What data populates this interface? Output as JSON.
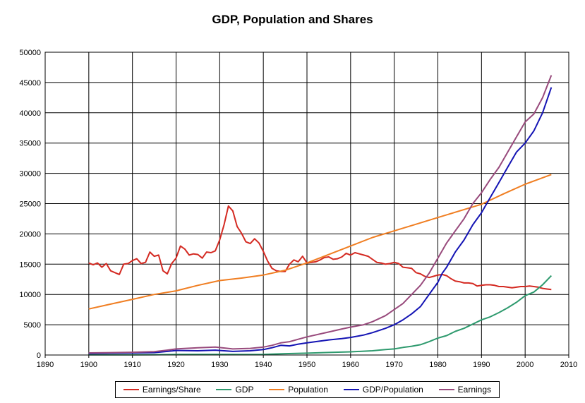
{
  "title": "GDP, Population and Shares",
  "chart_data": {
    "type": "line",
    "title": "GDP, Population and Shares",
    "xlabel": "",
    "ylabel": "",
    "xlim": [
      1890,
      2010
    ],
    "ylim": [
      0,
      50000
    ],
    "x_ticks": [
      "1890",
      "1900",
      "1910",
      "1920",
      "1930",
      "1940",
      "1950",
      "1960",
      "1970",
      "1980",
      "1990",
      "2000",
      "2010"
    ],
    "y_ticks": [
      "0",
      "5000",
      "10000",
      "15000",
      "20000",
      "25000",
      "30000",
      "35000",
      "40000",
      "45000",
      "50000"
    ],
    "grid": true,
    "legend_position": "bottom",
    "series": [
      {
        "name": "Earnings/Share",
        "color": "#d42a22",
        "points": [
          [
            1900,
            15200
          ],
          [
            1901,
            14900
          ],
          [
            1902,
            15200
          ],
          [
            1903,
            14500
          ],
          [
            1904,
            15100
          ],
          [
            1905,
            13900
          ],
          [
            1906,
            13600
          ],
          [
            1907,
            13300
          ],
          [
            1908,
            15000
          ],
          [
            1909,
            15100
          ],
          [
            1910,
            15600
          ],
          [
            1911,
            15900
          ],
          [
            1912,
            15100
          ],
          [
            1913,
            15300
          ],
          [
            1914,
            17000
          ],
          [
            1915,
            16300
          ],
          [
            1916,
            16500
          ],
          [
            1917,
            13900
          ],
          [
            1918,
            13400
          ],
          [
            1919,
            15100
          ],
          [
            1920,
            16000
          ],
          [
            1921,
            18000
          ],
          [
            1922,
            17500
          ],
          [
            1923,
            16500
          ],
          [
            1924,
            16700
          ],
          [
            1925,
            16600
          ],
          [
            1926,
            16000
          ],
          [
            1927,
            17000
          ],
          [
            1928,
            16900
          ],
          [
            1929,
            17200
          ],
          [
            1930,
            19000
          ],
          [
            1931,
            21500
          ],
          [
            1932,
            24600
          ],
          [
            1933,
            23800
          ],
          [
            1934,
            21200
          ],
          [
            1935,
            20100
          ],
          [
            1936,
            18700
          ],
          [
            1937,
            18400
          ],
          [
            1938,
            19200
          ],
          [
            1939,
            18500
          ],
          [
            1940,
            17100
          ],
          [
            1941,
            15500
          ],
          [
            1942,
            14300
          ],
          [
            1943,
            13900
          ],
          [
            1944,
            13800
          ],
          [
            1945,
            13800
          ],
          [
            1946,
            15000
          ],
          [
            1947,
            15700
          ],
          [
            1948,
            15400
          ],
          [
            1949,
            16300
          ],
          [
            1950,
            15200
          ],
          [
            1951,
            15300
          ],
          [
            1952,
            15400
          ],
          [
            1953,
            15700
          ],
          [
            1954,
            16100
          ],
          [
            1955,
            16200
          ],
          [
            1956,
            15800
          ],
          [
            1957,
            15900
          ],
          [
            1958,
            16200
          ],
          [
            1959,
            16800
          ],
          [
            1960,
            16500
          ],
          [
            1961,
            16900
          ],
          [
            1962,
            16700
          ],
          [
            1963,
            16500
          ],
          [
            1964,
            16300
          ],
          [
            1965,
            15800
          ],
          [
            1966,
            15300
          ],
          [
            1967,
            15200
          ],
          [
            1968,
            15000
          ],
          [
            1969,
            15100
          ],
          [
            1970,
            15300
          ],
          [
            1971,
            15100
          ],
          [
            1972,
            14500
          ],
          [
            1973,
            14400
          ],
          [
            1974,
            14300
          ],
          [
            1975,
            13600
          ],
          [
            1976,
            13400
          ],
          [
            1977,
            13000
          ],
          [
            1978,
            12800
          ],
          [
            1979,
            13000
          ],
          [
            1980,
            13200
          ],
          [
            1981,
            13300
          ],
          [
            1982,
            13100
          ],
          [
            1983,
            12600
          ],
          [
            1984,
            12200
          ],
          [
            1985,
            12100
          ],
          [
            1986,
            11900
          ],
          [
            1987,
            11900
          ],
          [
            1988,
            11800
          ],
          [
            1989,
            11400
          ],
          [
            1990,
            11500
          ],
          [
            1991,
            11600
          ],
          [
            1992,
            11600
          ],
          [
            1993,
            11500
          ],
          [
            1994,
            11300
          ],
          [
            1995,
            11300
          ],
          [
            1996,
            11200
          ],
          [
            1997,
            11100
          ],
          [
            1998,
            11200
          ],
          [
            1999,
            11300
          ],
          [
            2000,
            11300
          ],
          [
            2001,
            11400
          ],
          [
            2002,
            11300
          ],
          [
            2003,
            11200
          ],
          [
            2004,
            11000
          ],
          [
            2005,
            10900
          ],
          [
            2006,
            10800
          ]
        ]
      },
      {
        "name": "GDP",
        "color": "#2e9a6e",
        "points": [
          [
            1900,
            20
          ],
          [
            1905,
            30
          ],
          [
            1910,
            40
          ],
          [
            1915,
            50
          ],
          [
            1920,
            90
          ],
          [
            1925,
            100
          ],
          [
            1930,
            100
          ],
          [
            1935,
            80
          ],
          [
            1940,
            110
          ],
          [
            1945,
            220
          ],
          [
            1950,
            300
          ],
          [
            1955,
            420
          ],
          [
            1960,
            530
          ],
          [
            1965,
            700
          ],
          [
            1968,
            900
          ],
          [
            1970,
            1000
          ],
          [
            1972,
            1250
          ],
          [
            1974,
            1450
          ],
          [
            1976,
            1700
          ],
          [
            1978,
            2200
          ],
          [
            1980,
            2800
          ],
          [
            1982,
            3200
          ],
          [
            1984,
            3900
          ],
          [
            1986,
            4400
          ],
          [
            1988,
            5100
          ],
          [
            1990,
            5800
          ],
          [
            1992,
            6300
          ],
          [
            1994,
            7000
          ],
          [
            1996,
            7800
          ],
          [
            1998,
            8700
          ],
          [
            2000,
            9800
          ],
          [
            2002,
            10400
          ],
          [
            2004,
            11600
          ],
          [
            2006,
            13100
          ]
        ]
      },
      {
        "name": "Population",
        "color": "#f07e22",
        "points": [
          [
            1900,
            7600
          ],
          [
            1905,
            8400
          ],
          [
            1910,
            9200
          ],
          [
            1915,
            10000
          ],
          [
            1920,
            10600
          ],
          [
            1925,
            11500
          ],
          [
            1930,
            12300
          ],
          [
            1935,
            12700
          ],
          [
            1940,
            13200
          ],
          [
            1945,
            14000
          ],
          [
            1950,
            15200
          ],
          [
            1955,
            16600
          ],
          [
            1960,
            18000
          ],
          [
            1965,
            19400
          ],
          [
            1970,
            20500
          ],
          [
            1975,
            21600
          ],
          [
            1980,
            22700
          ],
          [
            1985,
            23800
          ],
          [
            1990,
            24900
          ],
          [
            1995,
            26600
          ],
          [
            2000,
            28200
          ],
          [
            2006,
            29800
          ]
        ]
      },
      {
        "name": "GDP/Population",
        "color": "#1414b4",
        "points": [
          [
            1900,
            250
          ],
          [
            1905,
            300
          ],
          [
            1910,
            350
          ],
          [
            1915,
            400
          ],
          [
            1918,
            600
          ],
          [
            1920,
            750
          ],
          [
            1925,
            700
          ],
          [
            1929,
            800
          ],
          [
            1933,
            600
          ],
          [
            1937,
            700
          ],
          [
            1940,
            900
          ],
          [
            1942,
            1200
          ],
          [
            1944,
            1600
          ],
          [
            1946,
            1500
          ],
          [
            1948,
            1800
          ],
          [
            1950,
            2000
          ],
          [
            1953,
            2300
          ],
          [
            1955,
            2500
          ],
          [
            1958,
            2700
          ],
          [
            1960,
            2900
          ],
          [
            1963,
            3300
          ],
          [
            1965,
            3700
          ],
          [
            1968,
            4400
          ],
          [
            1970,
            5000
          ],
          [
            1972,
            5800
          ],
          [
            1974,
            6800
          ],
          [
            1976,
            8000
          ],
          [
            1978,
            10000
          ],
          [
            1980,
            12000
          ],
          [
            1981,
            13500
          ],
          [
            1982,
            14500
          ],
          [
            1984,
            17000
          ],
          [
            1986,
            19000
          ],
          [
            1988,
            21500
          ],
          [
            1990,
            23500
          ],
          [
            1992,
            26000
          ],
          [
            1994,
            28500
          ],
          [
            1996,
            31000
          ],
          [
            1998,
            33500
          ],
          [
            2000,
            35000
          ],
          [
            2002,
            37000
          ],
          [
            2004,
            40000
          ],
          [
            2006,
            44200
          ]
        ]
      },
      {
        "name": "Earnings",
        "color": "#984a7c",
        "points": [
          [
            1900,
            350
          ],
          [
            1905,
            400
          ],
          [
            1910,
            450
          ],
          [
            1915,
            550
          ],
          [
            1918,
            800
          ],
          [
            1920,
            1000
          ],
          [
            1925,
            1200
          ],
          [
            1929,
            1300
          ],
          [
            1933,
            1000
          ],
          [
            1937,
            1100
          ],
          [
            1940,
            1300
          ],
          [
            1942,
            1600
          ],
          [
            1944,
            2000
          ],
          [
            1946,
            2200
          ],
          [
            1948,
            2600
          ],
          [
            1950,
            3000
          ],
          [
            1955,
            3800
          ],
          [
            1958,
            4300
          ],
          [
            1960,
            4600
          ],
          [
            1963,
            5000
          ],
          [
            1965,
            5500
          ],
          [
            1968,
            6500
          ],
          [
            1970,
            7500
          ],
          [
            1972,
            8500
          ],
          [
            1974,
            10000
          ],
          [
            1976,
            11500
          ],
          [
            1978,
            13500
          ],
          [
            1980,
            16000
          ],
          [
            1982,
            18500
          ],
          [
            1984,
            20500
          ],
          [
            1986,
            22500
          ],
          [
            1988,
            25000
          ],
          [
            1990,
            26800
          ],
          [
            1992,
            29000
          ],
          [
            1994,
            31000
          ],
          [
            1996,
            33500
          ],
          [
            1998,
            36000
          ],
          [
            2000,
            38500
          ],
          [
            2002,
            39800
          ],
          [
            2004,
            42500
          ],
          [
            2006,
            46200
          ]
        ]
      }
    ]
  }
}
